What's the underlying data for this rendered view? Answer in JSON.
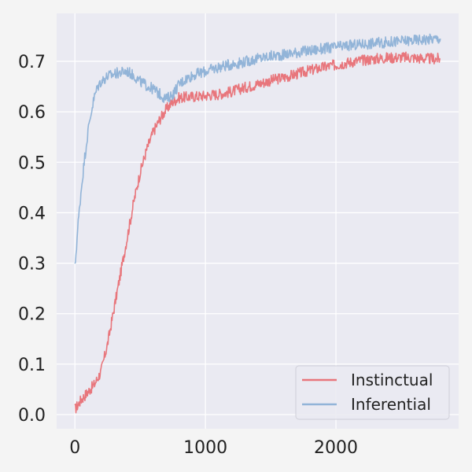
{
  "chart_data": {
    "type": "line",
    "title": "",
    "xlabel": "",
    "ylabel": "",
    "xlim": [
      -140,
      2940
    ],
    "ylim": [
      -0.028,
      0.795
    ],
    "grid": true,
    "x_ticks": [
      0,
      1000,
      2000
    ],
    "x_tick_labels": [
      "0",
      "1000",
      "2000"
    ],
    "y_ticks": [
      0.0,
      0.1,
      0.2,
      0.3,
      0.4,
      0.5,
      0.6,
      0.7
    ],
    "y_tick_labels": [
      "0.0",
      "0.1",
      "0.2",
      "0.3",
      "0.4",
      "0.5",
      "0.6",
      "0.7"
    ],
    "legend": {
      "position": "lower-right"
    },
    "series": [
      {
        "name": "Instinctual",
        "color": "#e8767c",
        "x": [
          0,
          50,
          100,
          150,
          200,
          250,
          300,
          350,
          400,
          450,
          500,
          550,
          600,
          650,
          700,
          750,
          800,
          900,
          1000,
          1100,
          1200,
          1300,
          1400,
          1500,
          1600,
          1700,
          1800,
          1900,
          2000,
          2100,
          2200,
          2300,
          2400,
          2500,
          2600,
          2700,
          2800
        ],
        "y": [
          0.01,
          0.03,
          0.045,
          0.06,
          0.085,
          0.14,
          0.21,
          0.28,
          0.35,
          0.42,
          0.48,
          0.525,
          0.56,
          0.585,
          0.605,
          0.62,
          0.628,
          0.63,
          0.632,
          0.635,
          0.64,
          0.648,
          0.655,
          0.662,
          0.668,
          0.675,
          0.682,
          0.688,
          0.693,
          0.698,
          0.702,
          0.705,
          0.707,
          0.708,
          0.707,
          0.705,
          0.705
        ]
      },
      {
        "name": "Inferential",
        "color": "#92b4d8",
        "x": [
          0,
          25,
          50,
          75,
          100,
          125,
          150,
          175,
          200,
          250,
          300,
          350,
          400,
          450,
          500,
          550,
          600,
          650,
          700,
          750,
          800,
          850,
          900,
          1000,
          1100,
          1200,
          1300,
          1400,
          1500,
          1600,
          1700,
          1800,
          1900,
          2000,
          2100,
          2200,
          2300,
          2400,
          2500,
          2600,
          2700,
          2800
        ],
        "y": [
          0.29,
          0.38,
          0.45,
          0.51,
          0.56,
          0.6,
          0.63,
          0.65,
          0.66,
          0.67,
          0.675,
          0.678,
          0.68,
          0.672,
          0.66,
          0.652,
          0.645,
          0.635,
          0.625,
          0.635,
          0.655,
          0.665,
          0.672,
          0.68,
          0.688,
          0.694,
          0.699,
          0.705,
          0.71,
          0.713,
          0.718,
          0.721,
          0.725,
          0.728,
          0.731,
          0.734,
          0.736,
          0.738,
          0.74,
          0.742,
          0.744,
          0.745
        ]
      }
    ]
  }
}
